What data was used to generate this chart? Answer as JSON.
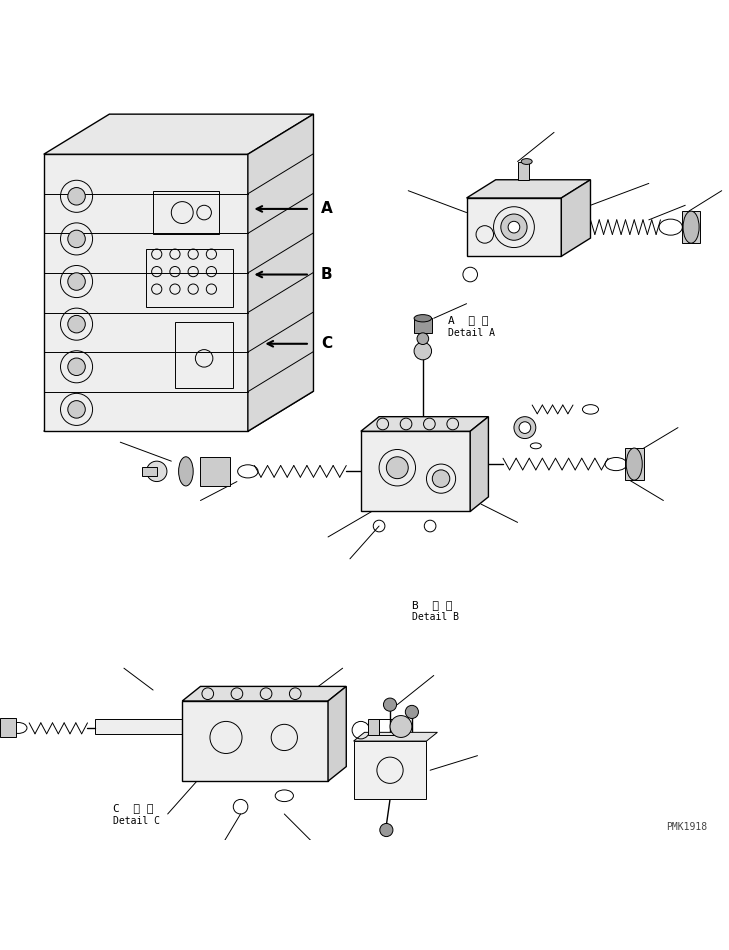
{
  "bg_color": "#ffffff",
  "line_color": "#000000",
  "fig_width": 7.29,
  "fig_height": 9.5,
  "dpi": 100,
  "watermark": "PMK1918",
  "labels": {
    "A_detail_ja": "A  詳 細",
    "A_detail_en": "Detail A",
    "B_detail_ja": "B  詳 細",
    "B_detail_en": "Detail B",
    "C_detail_ja": "C  詳 細",
    "C_detail_en": "Detail C",
    "label_A": "A",
    "label_B": "B",
    "label_C": "C"
  }
}
